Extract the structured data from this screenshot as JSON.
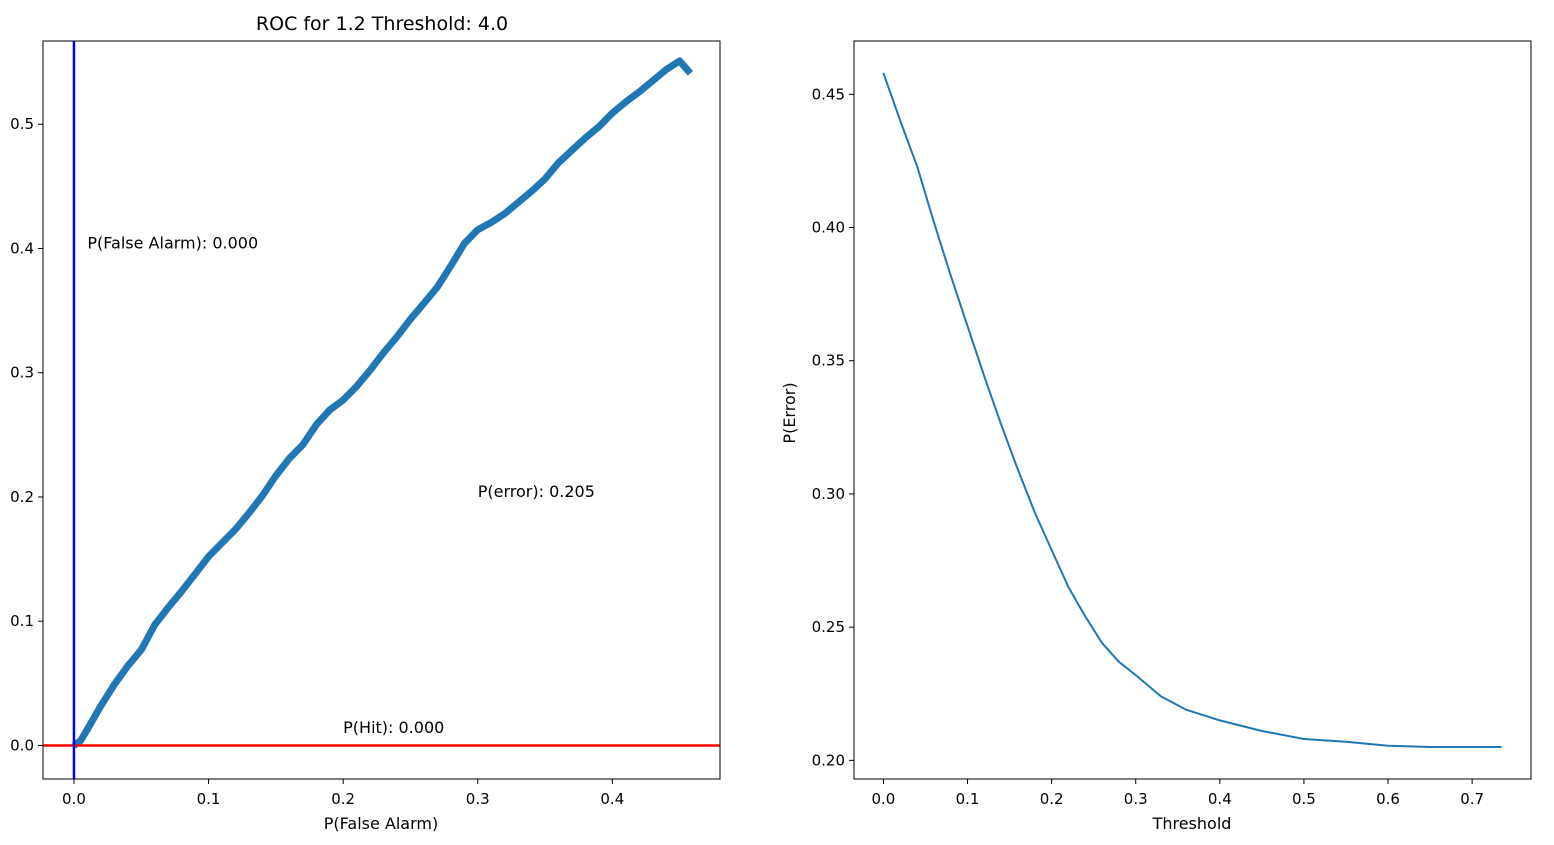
{
  "colors": {
    "series": "#1f77b4",
    "vline": "#0000ff",
    "hline": "#ff0000",
    "axes": "#000000",
    "background": "#ffffff"
  },
  "chart_data": [
    {
      "type": "line",
      "title": "ROC for 1.2 Threshold: 4.0",
      "xlabel": "P(False Alarm)",
      "ylabel": "",
      "xlim": [
        -0.023,
        0.48
      ],
      "ylim": [
        -0.027,
        0.567
      ],
      "xticks": [
        0.0,
        0.1,
        0.2,
        0.3,
        0.4
      ],
      "xtick_labels": [
        "0.0",
        "0.1",
        "0.2",
        "0.3",
        "0.4"
      ],
      "yticks": [
        0.0,
        0.1,
        0.2,
        0.3,
        0.4,
        0.5
      ],
      "ytick_labels": [
        "0.0",
        "0.1",
        "0.2",
        "0.3",
        "0.4",
        "0.5"
      ],
      "grid": false,
      "series": [
        {
          "x": [
            0.0,
            0.005,
            0.01,
            0.02,
            0.03,
            0.04,
            0.05,
            0.06,
            0.07,
            0.08,
            0.09,
            0.1,
            0.11,
            0.12,
            0.13,
            0.14,
            0.15,
            0.16,
            0.17,
            0.18,
            0.19,
            0.2,
            0.21,
            0.22,
            0.23,
            0.24,
            0.25,
            0.26,
            0.27,
            0.28,
            0.29,
            0.3,
            0.31,
            0.32,
            0.33,
            0.34,
            0.35,
            0.36,
            0.37,
            0.38,
            0.39,
            0.4,
            0.41,
            0.42,
            0.43,
            0.44,
            0.45,
            0.458
          ],
          "y": [
            0.0,
            0.004,
            0.013,
            0.032,
            0.049,
            0.064,
            0.077,
            0.097,
            0.111,
            0.124,
            0.138,
            0.152,
            0.163,
            0.174,
            0.187,
            0.201,
            0.217,
            0.231,
            0.242,
            0.258,
            0.27,
            0.278,
            0.289,
            0.302,
            0.316,
            0.329,
            0.343,
            0.356,
            0.369,
            0.386,
            0.404,
            0.415,
            0.421,
            0.428,
            0.437,
            0.446,
            0.456,
            0.469,
            0.479,
            0.489,
            0.498,
            0.509,
            0.518,
            0.526,
            0.535,
            0.544,
            0.551,
            0.541
          ]
        }
      ],
      "vline_x": 0.0,
      "hline_y": 0.0,
      "annotations": [
        {
          "text": "P(False Alarm): 0.000",
          "x": 0.01,
          "y": 0.4
        },
        {
          "text": "P(error): 0.205",
          "x": 0.3,
          "y": 0.2
        },
        {
          "text": "P(Hit): 0.000",
          "x": 0.2,
          "y": 0.01
        }
      ]
    },
    {
      "type": "line",
      "title": "",
      "xlabel": "Threshold",
      "ylabel": "P(Error)",
      "xlim": [
        -0.035,
        0.77
      ],
      "ylim": [
        0.193,
        0.47
      ],
      "xticks": [
        0.0,
        0.1,
        0.2,
        0.3,
        0.4,
        0.5,
        0.6,
        0.7
      ],
      "xtick_labels": [
        "0.0",
        "0.1",
        "0.2",
        "0.3",
        "0.4",
        "0.5",
        "0.6",
        "0.7"
      ],
      "yticks": [
        0.2,
        0.25,
        0.3,
        0.35,
        0.4,
        0.45
      ],
      "ytick_labels": [
        "0.20",
        "0.25",
        "0.30",
        "0.35",
        "0.40",
        "0.45"
      ],
      "grid": false,
      "series": [
        {
          "x": [
            0.0,
            0.02,
            0.04,
            0.06,
            0.08,
            0.1,
            0.12,
            0.14,
            0.16,
            0.18,
            0.2,
            0.22,
            0.24,
            0.26,
            0.28,
            0.3,
            0.33,
            0.36,
            0.4,
            0.45,
            0.5,
            0.55,
            0.6,
            0.65,
            0.7,
            0.735
          ],
          "y": [
            0.458,
            0.44,
            0.423,
            0.402,
            0.382,
            0.363,
            0.344,
            0.326,
            0.309,
            0.293,
            0.279,
            0.265,
            0.254,
            0.244,
            0.237,
            0.232,
            0.224,
            0.219,
            0.215,
            0.211,
            0.208,
            0.207,
            0.2055,
            0.205,
            0.205,
            0.205
          ]
        }
      ]
    }
  ]
}
